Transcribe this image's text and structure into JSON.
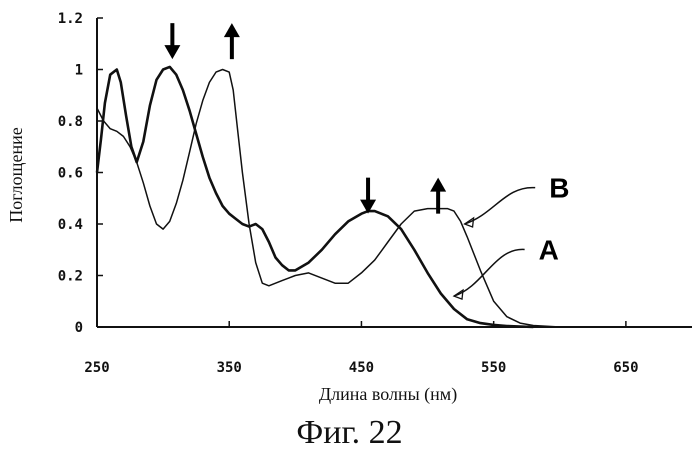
{
  "chart_data": {
    "type": "line",
    "xlabel": "Длина волны (нм)",
    "ylabel": "Поглощение",
    "xlim": [
      250,
      700
    ],
    "ylim": [
      0,
      1.2
    ],
    "xticks": [
      250,
      350,
      450,
      550,
      650
    ],
    "xtick_labels": [
      "250",
      "350",
      "450",
      "550",
      "650"
    ],
    "yticks": [
      0,
      0.2,
      0.4,
      0.6,
      0.8,
      1,
      1.2
    ],
    "ytick_labels": [
      "0",
      "0.2",
      "0.4",
      "0.6",
      "0.8",
      "1",
      "1.2"
    ],
    "grid": false,
    "series": [
      {
        "name": "A",
        "x": [
          250,
          253,
          256,
          260,
          265,
          268,
          272,
          276,
          280,
          285,
          290,
          295,
          300,
          305,
          310,
          315,
          320,
          325,
          330,
          335,
          340,
          345,
          350,
          355,
          360,
          365,
          370,
          375,
          380,
          385,
          390,
          395,
          400,
          410,
          420,
          430,
          440,
          450,
          455,
          460,
          465,
          470,
          480,
          490,
          500,
          510,
          520,
          530,
          540,
          550,
          560,
          570,
          580
        ],
        "y": [
          0.6,
          0.73,
          0.87,
          0.98,
          1.0,
          0.95,
          0.82,
          0.7,
          0.64,
          0.72,
          0.86,
          0.96,
          1.0,
          1.01,
          0.98,
          0.92,
          0.84,
          0.75,
          0.66,
          0.58,
          0.52,
          0.47,
          0.44,
          0.42,
          0.4,
          0.39,
          0.4,
          0.38,
          0.33,
          0.27,
          0.24,
          0.22,
          0.22,
          0.25,
          0.3,
          0.36,
          0.41,
          0.44,
          0.45,
          0.45,
          0.44,
          0.43,
          0.38,
          0.3,
          0.21,
          0.13,
          0.07,
          0.03,
          0.015,
          0.008,
          0.004,
          0.002,
          0.0
        ]
      },
      {
        "name": "B",
        "x": [
          250,
          255,
          260,
          265,
          270,
          275,
          280,
          285,
          290,
          295,
          300,
          305,
          310,
          315,
          320,
          325,
          330,
          335,
          340,
          345,
          350,
          353,
          356,
          360,
          365,
          370,
          375,
          380,
          385,
          390,
          395,
          400,
          410,
          420,
          430,
          440,
          450,
          460,
          470,
          480,
          490,
          500,
          510,
          515,
          520,
          525,
          530,
          540,
          550,
          560,
          570,
          580,
          590,
          600
        ],
        "y": [
          0.85,
          0.8,
          0.77,
          0.76,
          0.74,
          0.7,
          0.64,
          0.56,
          0.47,
          0.4,
          0.38,
          0.41,
          0.48,
          0.57,
          0.68,
          0.79,
          0.88,
          0.95,
          0.99,
          1.0,
          0.99,
          0.92,
          0.78,
          0.6,
          0.4,
          0.25,
          0.17,
          0.16,
          0.17,
          0.18,
          0.19,
          0.2,
          0.21,
          0.19,
          0.17,
          0.17,
          0.21,
          0.26,
          0.33,
          0.4,
          0.45,
          0.46,
          0.46,
          0.46,
          0.45,
          0.41,
          0.35,
          0.22,
          0.1,
          0.04,
          0.015,
          0.006,
          0.003,
          0.0
        ]
      }
    ],
    "annotations": [
      {
        "type": "arrow-down",
        "x": 307,
        "y": 1.18
      },
      {
        "type": "arrow-up",
        "x": 352,
        "y": 1.18
      },
      {
        "type": "arrow-down",
        "x": 455,
        "y": 0.58
      },
      {
        "type": "arrow-up",
        "x": 508,
        "y": 0.58
      }
    ],
    "series_labels": [
      {
        "text": "B",
        "x": 592,
        "y": 0.51,
        "leader_to": [
          528,
          0.4
        ]
      },
      {
        "text": "A",
        "x": 584,
        "y": 0.27,
        "leader_to": [
          520,
          0.12
        ]
      }
    ]
  },
  "caption": "Фиг. 22"
}
